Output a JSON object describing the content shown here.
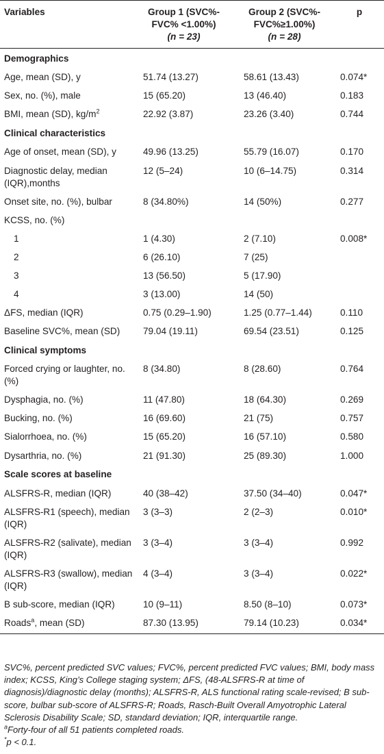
{
  "table": {
    "headers": {
      "variables": "Variables",
      "group1": [
        "Group 1 (SVC%-",
        "FVC% <1.00%)",
        "(n = 23)"
      ],
      "group2": [
        "Group 2 (SVC%-",
        "FVC%≥1.00%)",
        "(n = 28)"
      ],
      "p": "p"
    },
    "rows": [
      {
        "type": "section",
        "label": "Demographics"
      },
      {
        "label": "Age, mean (SD), y",
        "g1": "51.74 (13.27)",
        "g2": "58.61 (13.43)",
        "p": "0.074*"
      },
      {
        "label": "Sex, no. (%), male",
        "g1": "15 (65.20)",
        "g2": "13 (46.40)",
        "p": "0.183"
      },
      {
        "label": "BMI, mean (SD), kg/m",
        "sup": "2",
        "g1": "22.92 (3.87)",
        "g2": "23.26 (3.40)",
        "p": "0.744"
      },
      {
        "type": "section",
        "label": "Clinical characteristics"
      },
      {
        "label": "Age of onset, mean (SD), y",
        "g1": "49.96 (13.25)",
        "g2": "55.79 (16.07)",
        "p": "0.170"
      },
      {
        "label": "Diagnostic delay, median (IQR),months",
        "g1": "12 (5–24)",
        "g2": "10 (6–14.75)",
        "p": "0.314"
      },
      {
        "label": "Onset site, no. (%), bulbar",
        "g1": "8 (34.80%)",
        "g2": "14 (50%)",
        "p": "0.277"
      },
      {
        "label": "KCSS, no. (%)",
        "g1": "",
        "g2": "",
        "p": ""
      },
      {
        "label": "1",
        "indent": true,
        "g1": "1 (4.30)",
        "g2": "2 (7.10)",
        "p": "0.008*"
      },
      {
        "label": "2",
        "indent": true,
        "g1": "6 (26.10)",
        "g2": "7 (25)",
        "p": ""
      },
      {
        "label": "3",
        "indent": true,
        "g1": "13 (56.50)",
        "g2": "5 (17.90)",
        "p": ""
      },
      {
        "label": "4",
        "indent": true,
        "g1": "3 (13.00)",
        "g2": "14 (50)",
        "p": ""
      },
      {
        "label": "ΔFS, median (IQR)",
        "g1": "0.75 (0.29–1.90)",
        "g2": "1.25 (0.77–1.44)",
        "p": "0.110"
      },
      {
        "label": "Baseline SVC%, mean (SD)",
        "g1": "79.04 (19.11)",
        "g2": "69.54 (23.51)",
        "p": "0.125"
      },
      {
        "type": "section",
        "label": "Clinical symptoms"
      },
      {
        "label": "Forced crying or laughter, no. (%)",
        "g1": "8 (34.80)",
        "g2": "8 (28.60)",
        "p": "0.764"
      },
      {
        "label": "Dysphagia, no. (%)",
        "g1": "11 (47.80)",
        "g2": "18 (64.30)",
        "p": "0.269"
      },
      {
        "label": "Bucking, no. (%)",
        "g1": "16 (69.60)",
        "g2": "21 (75)",
        "p": "0.757"
      },
      {
        "label": "Sialorrhoea, no. (%)",
        "g1": "15 (65.20)",
        "g2": "16 (57.10)",
        "p": "0.580"
      },
      {
        "label": "Dysarthria, no. (%)",
        "g1": "21 (91.30)",
        "g2": "25 (89.30)",
        "p": "1.000"
      },
      {
        "type": "section",
        "label": "Scale scores at baseline"
      },
      {
        "label": "ALSFRS-R, median (IQR)",
        "g1": "40 (38–42)",
        "g2": "37.50 (34–40)",
        "p": "0.047*"
      },
      {
        "label": "ALSFRS-R1 (speech), median (IQR)",
        "g1": "3 (3–3)",
        "g2": "2 (2–3)",
        "p": "0.010*"
      },
      {
        "label": "ALSFRS-R2 (salivate), median (IQR)",
        "g1": "3 (3–4)",
        "g2": "3 (3–4)",
        "p": "0.992"
      },
      {
        "label": "ALSFRS-R3 (swallow), median (IQR)",
        "g1": "4 (3–4)",
        "g2": "3 (3–4)",
        "p": "0.022*"
      },
      {
        "label": "B sub-score, median (IQR)",
        "g1": "10 (9–11)",
        "g2": "8.50 (8–10)",
        "p": "0.073*"
      },
      {
        "label": "Roads",
        "sup": "a",
        "label_suffix": ", mean (SD)",
        "g1": "87.30 (13.95)",
        "g2": "79.14 (10.23)",
        "p": "0.034*"
      }
    ]
  },
  "footnotes": {
    "abbreviations": "SVC%, percent predicted SVC values; FVC%, percent predicted FVC values; BMI, body mass index; KCSS, King’s College staging system; ΔFS, (48-ALSFRS-R at time of diagnosis)/diagnostic delay (months); ALSFRS-R, ALS functional rating scale-revised; B sub-score, bulbar sub-score of ALSFRS-R; Roads, Rasch-Built Overall Amyotrophic Lateral Sclerosis Disability Scale; SD, standard deviation; IQR, interquartile range.",
    "note_a_mark": "a",
    "note_a": "Forty-four of all 51 patients completed roads.",
    "note_star_mark": "*",
    "note_star": "p < 0.1."
  }
}
